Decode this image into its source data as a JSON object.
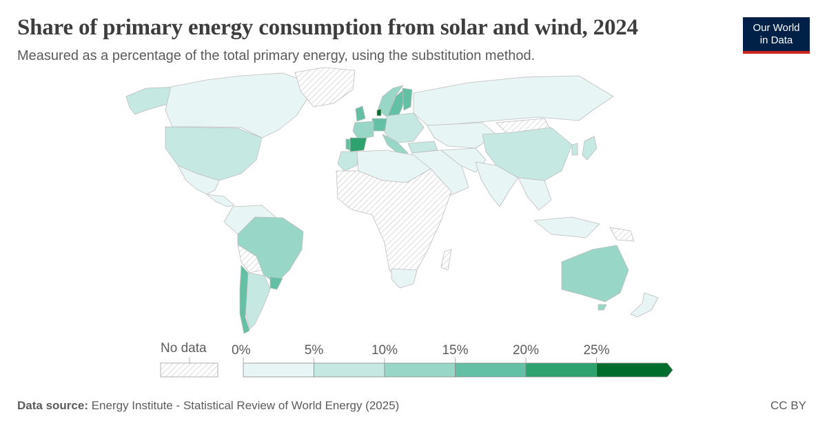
{
  "header": {
    "title": "Share of primary energy consumption from solar and wind, 2024",
    "subtitle": "Measured as a percentage of the total primary energy, using the substitution method."
  },
  "logo": {
    "line1": "Our World",
    "line2": "in Data"
  },
  "legend": {
    "no_data_label": "No data",
    "bins": [
      {
        "from": 0,
        "to": 5,
        "color": "#e8f5f5"
      },
      {
        "from": 5,
        "to": 10,
        "color": "#c6e8e3"
      },
      {
        "from": 10,
        "to": 15,
        "color": "#98d6c8"
      },
      {
        "from": 15,
        "to": 20,
        "color": "#64c0a5"
      },
      {
        "from": 20,
        "to": 25,
        "color": "#2ea26e"
      },
      {
        "from": 25,
        "to": null,
        "color": "#006d2c"
      }
    ],
    "tick_labels": [
      "0%",
      "5%",
      "10%",
      "15%",
      "20%",
      "25%"
    ]
  },
  "map": {
    "colors": {
      "no_data_fill": "#ffffff",
      "no_data_hatch": "#cccccc",
      "border": "#bdbdbd"
    },
    "regions": [
      {
        "name": "Canada",
        "bin": 0
      },
      {
        "name": "Alaska",
        "bin": 1
      },
      {
        "name": "United States",
        "bin": 2
      },
      {
        "name": "Mexico",
        "bin": 0
      },
      {
        "name": "Greenland",
        "bin": "no_data"
      },
      {
        "name": "Brazil",
        "bin": 2
      },
      {
        "name": "Argentina",
        "bin": 1
      },
      {
        "name": "Chile",
        "bin": 3
      },
      {
        "name": "Uruguay",
        "bin": 3
      },
      {
        "name": "Spain",
        "bin": 4
      },
      {
        "name": "Portugal",
        "bin": 3
      },
      {
        "name": "Germany",
        "bin": 3
      },
      {
        "name": "Denmark",
        "bin": 5
      },
      {
        "name": "Sweden",
        "bin": 3
      },
      {
        "name": "Finland",
        "bin": 3
      },
      {
        "name": "Norway",
        "bin": 2
      },
      {
        "name": "United Kingdom",
        "bin": 3
      },
      {
        "name": "Russia",
        "bin": 0
      },
      {
        "name": "China",
        "bin": 2
      },
      {
        "name": "India",
        "bin": 0
      },
      {
        "name": "Australia",
        "bin": 2
      },
      {
        "name": "Africa (most)",
        "bin": "no_data"
      },
      {
        "name": "Morocco",
        "bin": 1
      },
      {
        "name": "South Africa",
        "bin": 0
      },
      {
        "name": "Middle East",
        "bin": 0
      },
      {
        "name": "Japan",
        "bin": 1
      },
      {
        "name": "New Zealand",
        "bin": 0
      }
    ]
  },
  "footer": {
    "source_label": "Data source:",
    "source_text": "Energy Institute - Statistical Review of World Energy (2025)",
    "license": "CC BY"
  }
}
